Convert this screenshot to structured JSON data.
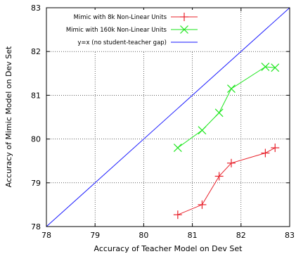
{
  "chart_data": {
    "type": "line",
    "title": "",
    "xlabel": "Accuracy of Teacher Model on Dev Set",
    "ylabel": "Accuracy of Mimic Model on Dev Set",
    "xlim": [
      78,
      83
    ],
    "ylim": [
      78,
      83
    ],
    "xticks": [
      "78",
      "79",
      "80",
      "81",
      "82",
      "83"
    ],
    "yticks": [
      "78",
      "79",
      "80",
      "81",
      "82",
      "83"
    ],
    "grid": true,
    "legend_position": "top-left",
    "series": [
      {
        "name": "Mimic with 8k Non-Linear Units",
        "color": "#e8202a",
        "marker": "plus",
        "x": [
          80.7,
          81.2,
          81.55,
          81.8,
          82.5,
          82.7
        ],
        "y": [
          78.27,
          78.5,
          79.15,
          79.45,
          79.68,
          79.8
        ]
      },
      {
        "name": "Mimic with 160k Non-Linear Units",
        "color": "#1ee61e",
        "marker": "x",
        "x": [
          80.7,
          81.2,
          81.55,
          81.8,
          82.5,
          82.7
        ],
        "y": [
          79.8,
          80.2,
          80.6,
          81.15,
          81.65,
          81.63
        ]
      },
      {
        "name": "y=x (no student-teacher gap)",
        "color": "#1a1aff",
        "marker": "none",
        "x": [
          78,
          83
        ],
        "y": [
          78,
          83
        ]
      }
    ]
  }
}
